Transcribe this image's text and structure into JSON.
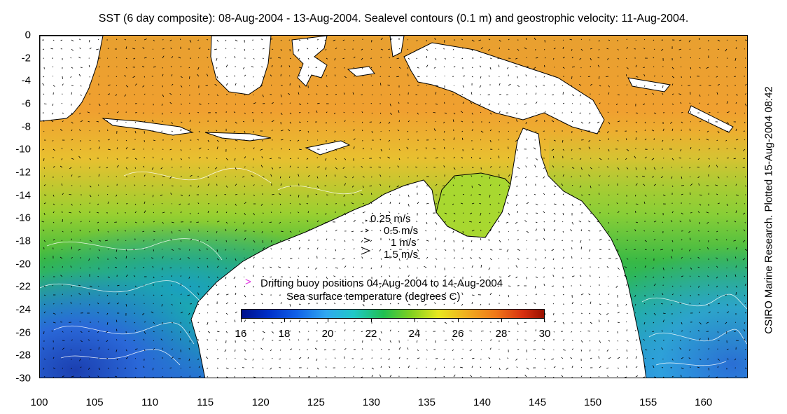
{
  "header": {
    "title": "SST (6 day composite): 08-Aug-2004 - 13-Aug-2004. Sealevel contours (0.1 m) and geostrophic velocity: 11-Aug-2004.",
    "credit": "CSIRO Marine Research. Plotted 15-Aug-2004 08:42"
  },
  "map": {
    "latitude_range": [
      -30,
      0
    ],
    "longitude_range": [
      100,
      164
    ],
    "lat_ticks": [
      "0",
      "-2",
      "-4",
      "-6",
      "-8",
      "-10",
      "-12",
      "-14",
      "-16",
      "-18",
      "-20",
      "-22",
      "-24",
      "-26",
      "-28",
      "-30"
    ],
    "lon_ticks": [
      "100",
      "105",
      "110",
      "115",
      "120",
      "125",
      "130",
      "135",
      "140",
      "145",
      "150",
      "155",
      "160"
    ]
  },
  "velocity_legend": {
    "items": [
      {
        "label": "0.25 m/s"
      },
      {
        "label": "0.5 m/s"
      },
      {
        "label": "1 m/s"
      },
      {
        "label": "1.5 m/s"
      }
    ]
  },
  "buoy_legend": {
    "symbol": ">",
    "symbol_color": "#e030e0",
    "label": "Drifting buoy positions 04-Aug-2004 to 14-Aug-2004"
  },
  "colorbar": {
    "title": "Sea surface temperature (degrees C)",
    "min": 16,
    "max": 30,
    "labels": [
      "16",
      "18",
      "20",
      "22",
      "24",
      "26",
      "28",
      "30"
    ]
  }
}
